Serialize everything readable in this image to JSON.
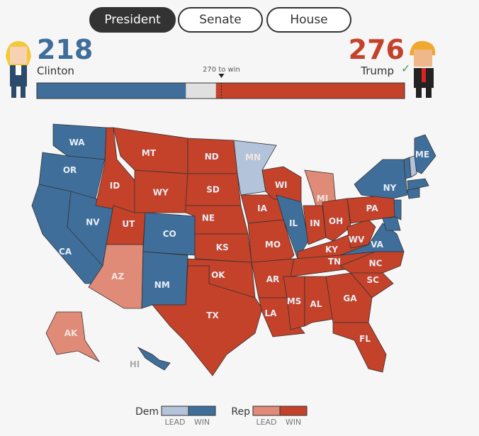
{
  "tabs": [
    {
      "label": "President",
      "active": true
    },
    {
      "label": "Senate",
      "active": false
    },
    {
      "label": "House",
      "active": false
    }
  ],
  "scoreboard": {
    "clinton": {
      "votes": 218,
      "name": "Clinton"
    },
    "trump": {
      "votes": 276,
      "name": "Trump"
    },
    "threshold": {
      "value": 270,
      "label": "270 to win"
    },
    "xlim": [
      0,
      538
    ]
  },
  "colors": {
    "dem-win": "#3f6e9b",
    "dem-lead": "#b3c3da",
    "rep-win": "#c4412a",
    "rep-lead": "#e08a78"
  },
  "states": [
    {
      "label": "WA",
      "status": "dem-win"
    },
    {
      "label": "OR",
      "status": "dem-win"
    },
    {
      "label": "CA",
      "status": "dem-win"
    },
    {
      "label": "NV",
      "status": "dem-win"
    },
    {
      "label": "ID",
      "status": "rep-win"
    },
    {
      "label": "MT",
      "status": "rep-win"
    },
    {
      "label": "WY",
      "status": "rep-win"
    },
    {
      "label": "UT",
      "status": "rep-win"
    },
    {
      "label": "AZ",
      "status": "rep-lead"
    },
    {
      "label": "CO",
      "status": "dem-win"
    },
    {
      "label": "NM",
      "status": "dem-win"
    },
    {
      "label": "ND",
      "status": "rep-win"
    },
    {
      "label": "SD",
      "status": "rep-win"
    },
    {
      "label": "NE",
      "status": "rep-win"
    },
    {
      "label": "KS",
      "status": "rep-win"
    },
    {
      "label": "OK",
      "status": "rep-win"
    },
    {
      "label": "TX",
      "status": "rep-win"
    },
    {
      "label": "MN",
      "status": "dem-lead"
    },
    {
      "label": "IA",
      "status": "rep-win"
    },
    {
      "label": "MO",
      "status": "rep-win"
    },
    {
      "label": "AR",
      "status": "rep-win"
    },
    {
      "label": "LA",
      "status": "rep-win"
    },
    {
      "label": "WI",
      "status": "rep-win"
    },
    {
      "label": "IL",
      "status": "dem-win"
    },
    {
      "label": "MI",
      "status": "rep-lead"
    },
    {
      "label": "IN",
      "status": "rep-win"
    },
    {
      "label": "OH",
      "status": "rep-win"
    },
    {
      "label": "KY",
      "status": "rep-win"
    },
    {
      "label": "TN",
      "status": "rep-win"
    },
    {
      "label": "MS",
      "status": "rep-win"
    },
    {
      "label": "AL",
      "status": "rep-win"
    },
    {
      "label": "GA",
      "status": "rep-win"
    },
    {
      "label": "FL",
      "status": "rep-win"
    },
    {
      "label": "SC",
      "status": "rep-win"
    },
    {
      "label": "NC",
      "status": "rep-win"
    },
    {
      "label": "VA",
      "status": "dem-win"
    },
    {
      "label": "WV",
      "status": "rep-win"
    },
    {
      "label": "PA",
      "status": "rep-win"
    },
    {
      "label": "NY",
      "status": "dem-win"
    },
    {
      "label": "ME",
      "status": "dem-win"
    },
    {
      "label": "AK",
      "status": "rep-lead"
    },
    {
      "label": "HI",
      "status": "dem-win"
    }
  ],
  "legend": {
    "dem": {
      "label": "Dem",
      "lead": "LEAD",
      "win": "WIN"
    },
    "rep": {
      "label": "Rep",
      "lead": "LEAD",
      "win": "WIN"
    }
  }
}
